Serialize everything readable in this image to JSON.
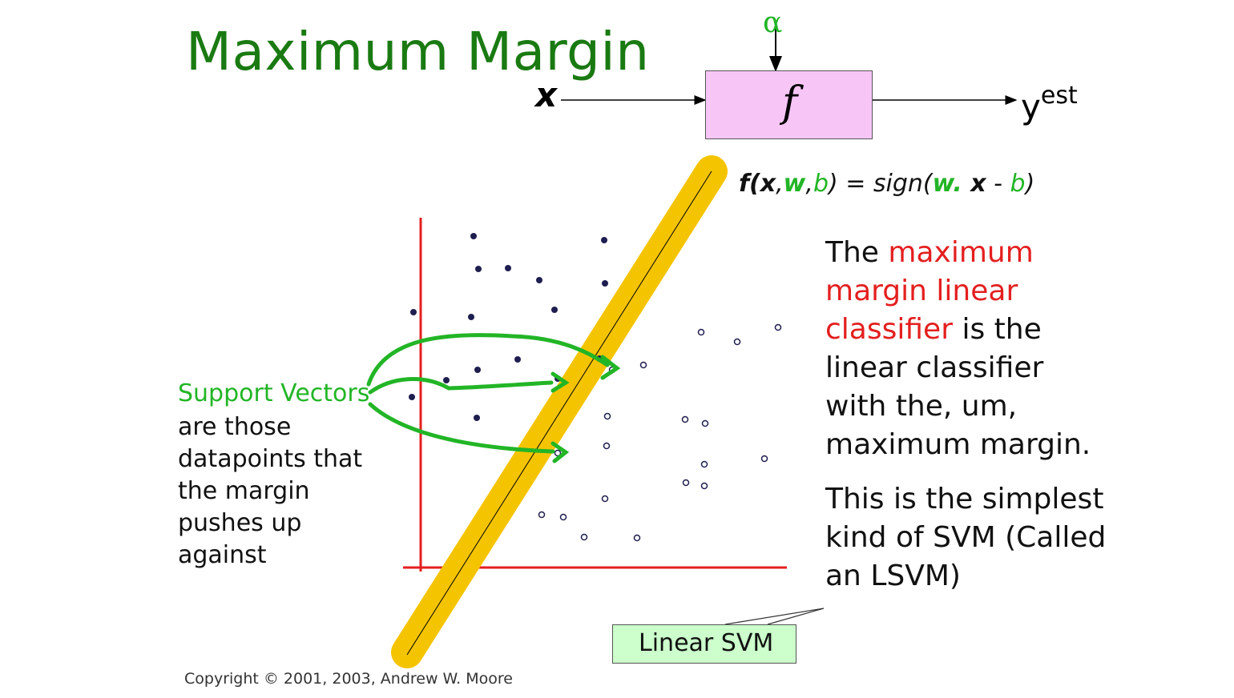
{
  "slide": {
    "title": "Maximum Margin",
    "copyright": "Copyright © 2001, 2003, Andrew W. Moore"
  },
  "block_diagram": {
    "input_label": "x",
    "function_label": "f",
    "param_label": "α",
    "output_label": "y",
    "output_superscript": "est",
    "box_color": "#f7c6f7"
  },
  "formula": {
    "part1": "f(",
    "x": "x",
    "comma1": ",",
    "w": "w",
    "comma2": ",",
    "b": "b",
    "part2": ") = sign(",
    "w2": "w.",
    "x2": " x",
    "minus": " - ",
    "b2": "b",
    "close": ")"
  },
  "support_vectors": {
    "label": "Support Vectors",
    "text": "are those datapoints that the margin pushes up against"
  },
  "description": {
    "p1_pre": "The ",
    "p1_red": "maximum margin linear classifier",
    "p1_post": " is the linear classifier with the, um, maximum margin.",
    "p2": "This is the simplest kind of SVM (Called an LSVM)"
  },
  "callout": {
    "label": "Linear SVM",
    "fill": "#ccffcc"
  },
  "colors": {
    "title": "#1a7a12",
    "accent_green": "#22b526",
    "highlight_red": "#e41f1f",
    "margin_band": "#f5c400",
    "axes": "#e41f1f"
  },
  "plot": {
    "positive_class": "filled dots",
    "negative_class": "open circles",
    "support_vector_count": 3
  }
}
